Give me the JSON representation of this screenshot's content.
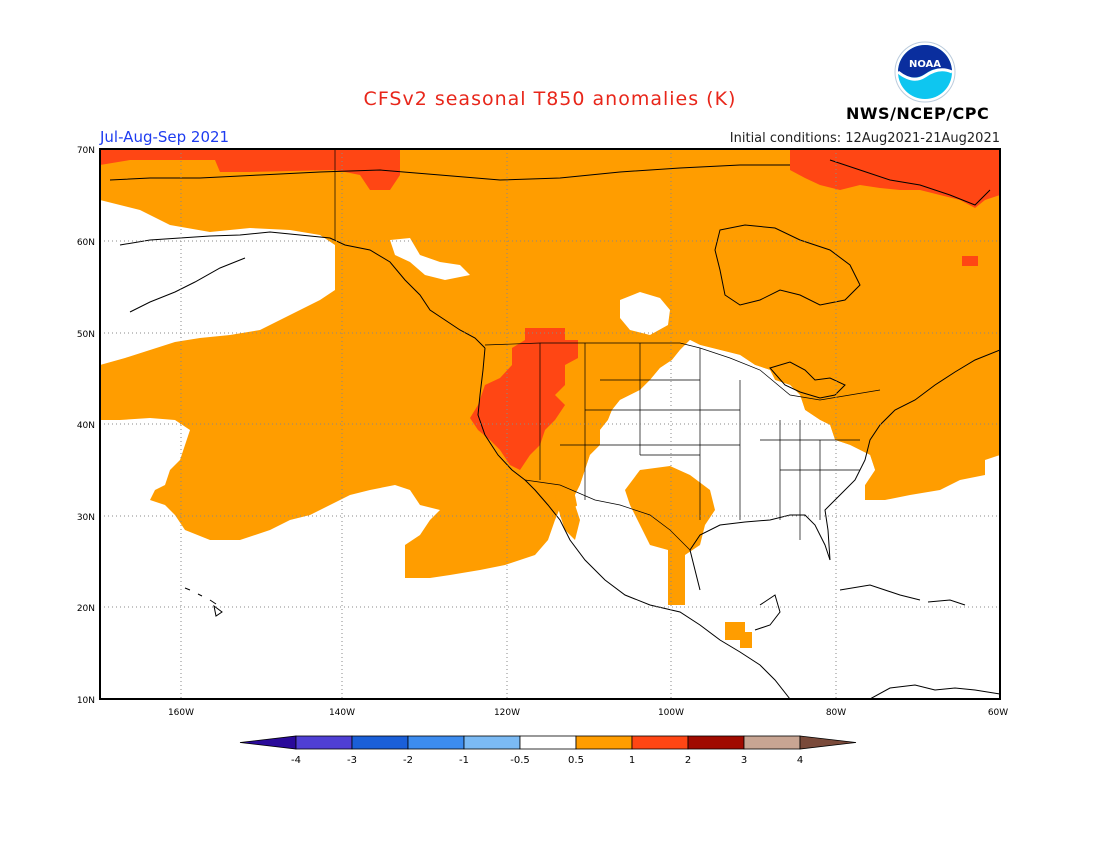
{
  "header": {
    "title": "CFSv2 seasonal T850 anomalies (K)",
    "season": "Jul-Aug-Sep 2021",
    "initial_conditions": "Initial conditions: 12Aug2021-21Aug2021",
    "agency": "NWS/NCEP/CPC",
    "logo_text": "NOAA"
  },
  "colors": {
    "title": "#e8261a",
    "season": "#1e3cf0",
    "land_line": "#000000",
    "grid": "#888888"
  },
  "map": {
    "projection": "lat-lon",
    "lon_range": [
      -172,
      -60
    ],
    "lat_range": [
      10,
      70
    ],
    "lon_labels": [
      "160W",
      "140W",
      "120W",
      "100W",
      "80W",
      "60W"
    ],
    "lat_labels": [
      "70N",
      "60N",
      "50N",
      "40N",
      "30N",
      "20N",
      "10N"
    ],
    "grid": "dotted"
  },
  "colorbar": {
    "bins": [
      {
        "color": "#2a0a9a"
      },
      {
        "color": "#4f3fd4"
      },
      {
        "color": "#1a5fd8"
      },
      {
        "color": "#3c8cef"
      },
      {
        "color": "#7bbaf4"
      },
      {
        "color": "#ffffff"
      },
      {
        "color": "#ff9d00"
      },
      {
        "color": "#ff4614"
      },
      {
        "color": "#a00a00"
      },
      {
        "color": "#c8a593"
      },
      {
        "color": "#7a4a3a"
      }
    ],
    "labels": [
      "-4",
      "-3",
      "-2",
      "-1",
      "-0.5",
      "0.5",
      "1",
      "2",
      "3",
      "4"
    ]
  }
}
